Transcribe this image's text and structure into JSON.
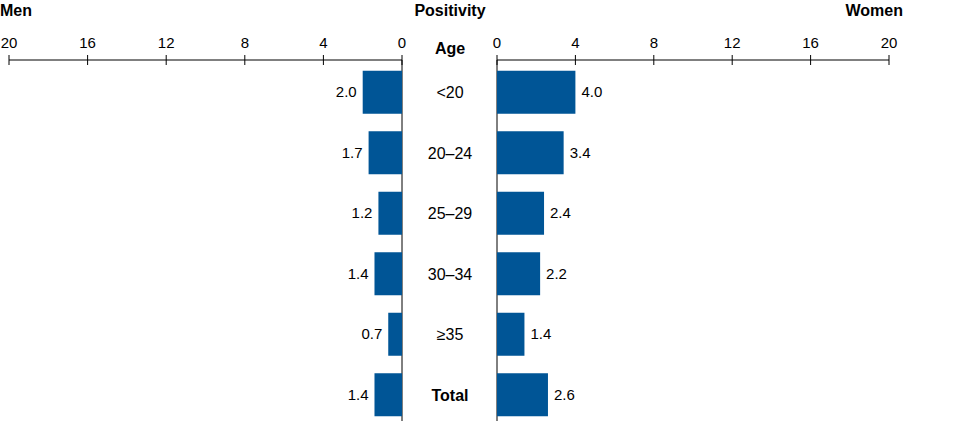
{
  "chart_data": {
    "type": "bar",
    "orientation": "horizontal",
    "title": "Positivity",
    "y_label": "Age",
    "categories": [
      "<20",
      "20–24",
      "25–29",
      "30–34",
      "≥35",
      "Total"
    ],
    "series": [
      {
        "name": "Men",
        "color": "#005596",
        "values": [
          2.0,
          1.7,
          1.2,
          1.4,
          0.7,
          1.4
        ],
        "value_labels": [
          "2.0",
          "1.7",
          "1.2",
          "1.4",
          "0.7",
          "1.4"
        ]
      },
      {
        "name": "Women",
        "color": "#005596",
        "values": [
          4.0,
          3.4,
          2.4,
          2.2,
          1.4,
          2.6
        ],
        "value_labels": [
          "4.0",
          "3.4",
          "2.4",
          "2.2",
          "1.4",
          "2.6"
        ]
      }
    ],
    "xlim": [
      0,
      20
    ],
    "xticks": [
      0,
      4,
      8,
      12,
      16,
      20
    ],
    "data_labels": true,
    "grid": false
  }
}
